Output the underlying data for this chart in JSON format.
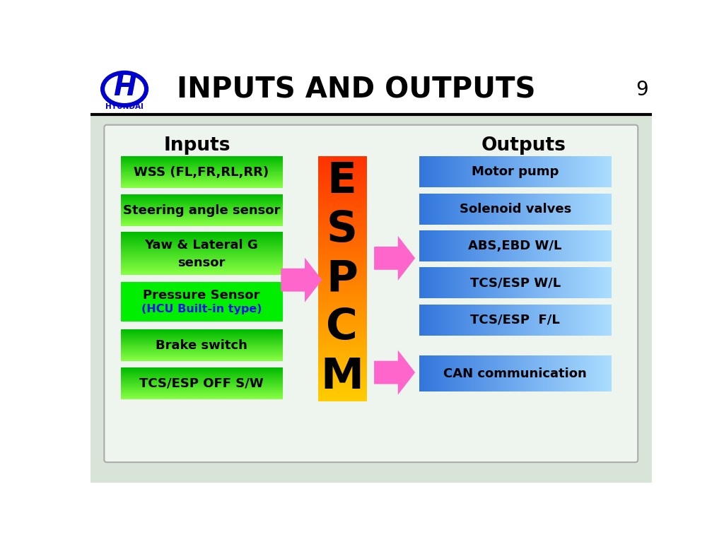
{
  "title": "INPUTS AND OUTPUTS",
  "page_number": "9",
  "header_bg": "#ffffff",
  "content_bg": "#dce8dc",
  "inner_bg": "#e8f0e8",
  "inputs_label": "Inputs",
  "outputs_label": "Outputs",
  "espcm_letters": [
    "E",
    "S",
    "P",
    "C",
    "M"
  ],
  "input_boxes": [
    {
      "label": "WSS (FL,FR,RL,RR)",
      "two_line": false,
      "bright_green": false
    },
    {
      "label": "Steering angle sensor",
      "two_line": false,
      "bright_green": false
    },
    {
      "label": "Yaw & Lateral G\nsensor",
      "two_line": true,
      "bright_green": false
    },
    {
      "label": "Pressure Sensor\n(HCU Built-in type)",
      "two_line": true,
      "bright_green": true
    },
    {
      "label": "Brake switch",
      "two_line": false,
      "bright_green": false
    },
    {
      "label": "TCS/ESP OFF S/W",
      "two_line": false,
      "bright_green": false
    }
  ],
  "output_boxes": [
    {
      "label": "Motor pump"
    },
    {
      "label": "Solenoid valves"
    },
    {
      "label": "ABS,EBD W/L"
    },
    {
      "label": "TCS/ESP W/L"
    },
    {
      "label": "TCS/ESP  F/L"
    },
    {
      "label": "CAN communication"
    }
  ],
  "green_top": "#00bb00",
  "green_bottom": "#88ff44",
  "bright_green": "#00dd00",
  "blue_left": "#3377dd",
  "blue_right": "#aaddff",
  "arrow_color": "#ff66cc",
  "espcm_top": "#ff3300",
  "espcm_bottom": "#ffcc00",
  "hyundai_blue": "#0000cc"
}
